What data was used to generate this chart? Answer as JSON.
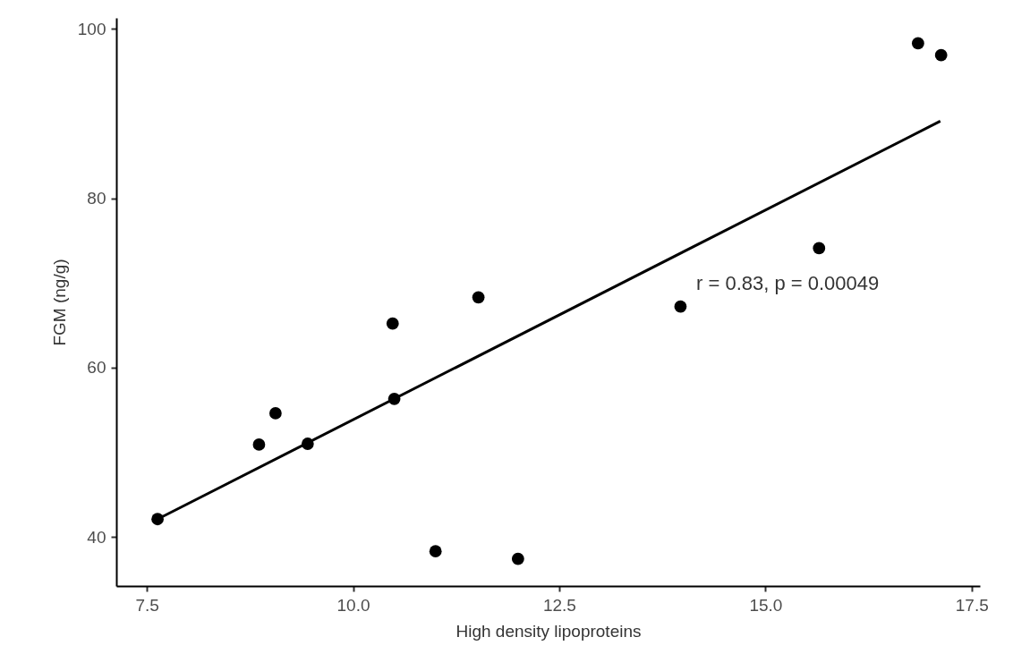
{
  "chart_data": {
    "type": "scatter",
    "xlabel": "High density lipoproteins",
    "ylabel": "FGM (ng/g)",
    "xlim": [
      7.13,
      17.6
    ],
    "ylim": [
      34.2,
      101.3
    ],
    "xticks": [
      {
        "value": 7.5,
        "label": "7.5"
      },
      {
        "value": 10,
        "label": "10.0"
      },
      {
        "value": 12.5,
        "label": "12.5"
      },
      {
        "value": 15,
        "label": "15.0"
      },
      {
        "value": 17.5,
        "label": "17.5"
      }
    ],
    "yticks": [
      40,
      60,
      80,
      100
    ],
    "grid": false,
    "series": [
      {
        "color": "#000000",
        "x": [
          7.63,
          8.86,
          9.06,
          9.45,
          10.48,
          10.5,
          11.0,
          11.52,
          12.0,
          13.97,
          15.65,
          16.85,
          17.13
        ],
        "values": [
          42.1,
          50.9,
          54.6,
          51.0,
          65.2,
          56.3,
          38.3,
          68.3,
          37.4,
          67.2,
          74.1,
          98.3,
          96.9
        ]
      },
      {
        "type": "line",
        "color": "#000000",
        "x": [
          7.63,
          17.12
        ],
        "values": [
          42.1,
          89.1
        ]
      }
    ],
    "annotations": [
      "r = 0.83, p = 0.00049"
    ]
  }
}
